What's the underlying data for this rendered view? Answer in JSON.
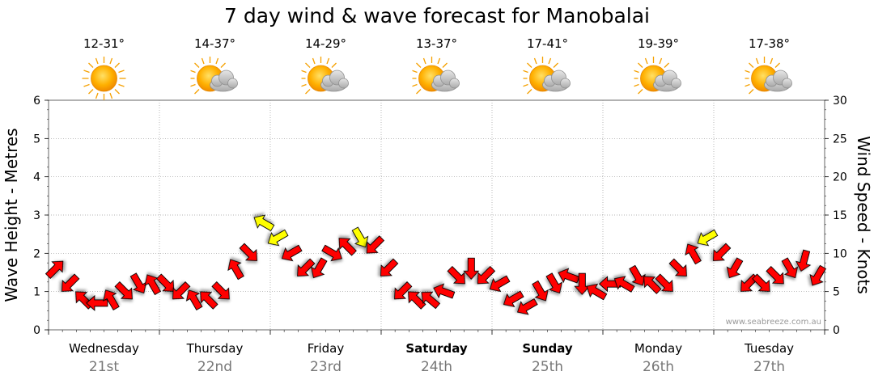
{
  "chart_data": {
    "type": "line",
    "title": "7 day wind & wave forecast for Manobalai",
    "ylabel_left": "Wave Height - Metres",
    "ylabel_right": "Wind Speed - Knots",
    "ylim_left": [
      0,
      6
    ],
    "ylim_right": [
      0,
      30
    ],
    "yticks_left": [
      "0",
      "1",
      "2",
      "3",
      "4",
      "5",
      "6"
    ],
    "yticks_right": [
      "0",
      "5",
      "10",
      "15",
      "20",
      "25",
      "30"
    ],
    "grid": true,
    "watermark": "www.seabreeze.com.au",
    "legend": "none",
    "days": [
      {
        "label": "Wednesday",
        "date": "21st",
        "bold": false,
        "temp": "12-31°",
        "icon": "sun-icon"
      },
      {
        "label": "Thursday",
        "date": "22nd",
        "bold": false,
        "temp": "14-37°",
        "icon": "sun-cloud-icon"
      },
      {
        "label": "Friday",
        "date": "23rd",
        "bold": false,
        "temp": "14-29°",
        "icon": "sun-cloud-icon"
      },
      {
        "label": "Saturday",
        "date": "24th",
        "bold": true,
        "temp": "13-37°",
        "icon": "sun-cloud-icon"
      },
      {
        "label": "Sunday",
        "date": "25th",
        "bold": true,
        "temp": "17-41°",
        "icon": "sun-cloud-icon"
      },
      {
        "label": "Monday",
        "date": "26th",
        "bold": false,
        "temp": "19-39°",
        "icon": "sun-cloud-icon"
      },
      {
        "label": "Tuesday",
        "date": "27th",
        "bold": false,
        "temp": "17-38°",
        "icon": "sun-cloud-icon"
      }
    ],
    "wind_series": {
      "name": "Wind speed (knots), 3-hourly",
      "unit": "knots",
      "colors": {
        "normal": "#ff0000",
        "strong": "#ffff00"
      },
      "strong_threshold": 12,
      "x_days": [
        0.0,
        0.125,
        0.25,
        0.375,
        0.5,
        0.625,
        0.75,
        0.875,
        1.0,
        1.125,
        1.25,
        1.375,
        1.5,
        1.625,
        1.75,
        1.875,
        2.0,
        2.125,
        2.25,
        2.375,
        2.5,
        2.625,
        2.75,
        2.875,
        3.0,
        3.125,
        3.25,
        3.375,
        3.5,
        3.625,
        3.75,
        3.875,
        4.0,
        4.125,
        4.25,
        4.375,
        4.5,
        4.625,
        4.75,
        4.875,
        5.0,
        5.125,
        5.25,
        5.375,
        5.5,
        5.625,
        5.75,
        5.875,
        6.0,
        6.125,
        6.25,
        6.375,
        6.5,
        6.625,
        6.75,
        6.875
      ],
      "values": [
        8,
        6,
        4,
        3.5,
        4,
        5,
        6,
        6,
        6,
        5,
        4,
        4,
        5,
        8,
        10,
        14,
        12,
        10,
        8,
        8,
        10,
        11,
        12,
        11,
        8,
        5,
        4,
        4,
        5,
        7,
        8,
        7,
        6,
        4,
        3,
        5,
        6,
        7,
        6,
        5,
        6,
        6,
        7,
        6,
        6,
        8,
        10,
        12,
        10,
        8,
        6,
        6,
        7,
        8,
        9,
        7
      ],
      "direction_deg": [
        315,
        135,
        225,
        180,
        240,
        45,
        60,
        240,
        45,
        135,
        240,
        225,
        45,
        240,
        45,
        210,
        150,
        150,
        135,
        120,
        30,
        225,
        60,
        135,
        135,
        135,
        225,
        220,
        200,
        45,
        90,
        135,
        150,
        150,
        150,
        60,
        60,
        200,
        90,
        210,
        180,
        210,
        60,
        225,
        45,
        45,
        240,
        150,
        135,
        120,
        135,
        45,
        45,
        60,
        105,
        120
      ]
    }
  }
}
